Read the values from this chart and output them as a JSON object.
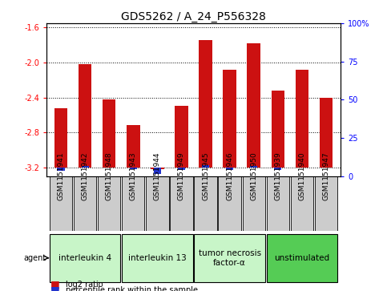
{
  "title": "GDS5262 / A_24_P556328",
  "samples": [
    "GSM1151941",
    "GSM1151942",
    "GSM1151948",
    "GSM1151943",
    "GSM1151944",
    "GSM1151949",
    "GSM1151945",
    "GSM1151946",
    "GSM1151950",
    "GSM1151939",
    "GSM1151940",
    "GSM1151947"
  ],
  "log2_values": [
    -2.52,
    -2.02,
    -2.42,
    -2.72,
    -3.22,
    -2.5,
    -1.74,
    -2.08,
    -1.78,
    -2.32,
    -2.08,
    -2.4
  ],
  "percentile_values": [
    3.5,
    6.5,
    5.5,
    4.5,
    1.5,
    4.0,
    7.0,
    4.0,
    6.5,
    4.0,
    5.5,
    5.5
  ],
  "ylim_left": [
    -3.3,
    -1.55
  ],
  "ylim_right": [
    0,
    100
  ],
  "yticks_left": [
    -3.2,
    -2.8,
    -2.4,
    -2.0,
    -1.6
  ],
  "yticks_right": [
    0,
    25,
    50,
    75,
    100
  ],
  "groups": [
    {
      "label": "interleukin 4",
      "start": 0,
      "end": 2,
      "color": "#c8f5c8"
    },
    {
      "label": "interleukin 13",
      "start": 3,
      "end": 5,
      "color": "#c8f5c8"
    },
    {
      "label": "tumor necrosis\nfactor-α",
      "start": 6,
      "end": 8,
      "color": "#c8f5c8"
    },
    {
      "label": "unstimulated",
      "start": 9,
      "end": 11,
      "color": "#55cc55"
    }
  ],
  "bar_color_red": "#cc1111",
  "bar_color_blue": "#2233cc",
  "bar_width": 0.55,
  "baseline": -3.2,
  "legend_red": "log2 ratio",
  "legend_blue": "percentile rank within the sample",
  "title_fontsize": 10,
  "tick_fontsize": 7,
  "sample_fontsize": 6.5,
  "group_fontsize": 7.5
}
